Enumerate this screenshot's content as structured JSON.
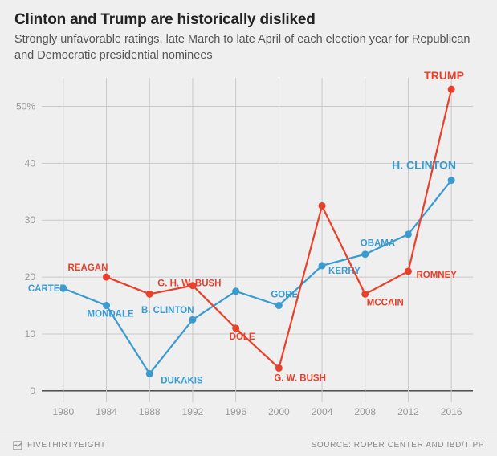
{
  "title": "Clinton and Trump are historically disliked",
  "subtitle": "Strongly unfavorable ratings, late March to late April of each election year for Republican and Democratic presidential nominees",
  "footer": {
    "brand": "FIVETHIRTYEIGHT",
    "source": "SOURCE: ROPER CENTER AND IBD/TIPP"
  },
  "chart": {
    "type": "line",
    "background": "#efefef",
    "grid_color": "#c9c9c9",
    "zero_line_color": "#3a3a3a",
    "axis_text_color": "#999999",
    "axis_fontsize": 12,
    "label_fontsize": 11.5,
    "end_label_fontsize": 14,
    "marker_radius": 4.5,
    "line_width": 2.2,
    "x": {
      "years": [
        1980,
        1984,
        1988,
        1992,
        1996,
        2000,
        2004,
        2008,
        2012,
        2016
      ],
      "min": 1978,
      "max": 2018
    },
    "y": {
      "ticks": [
        0,
        10,
        20,
        30,
        40,
        50
      ],
      "suffix_tick": 50,
      "suffix": "%",
      "min": -2,
      "max": 55
    },
    "series": {
      "dem": {
        "color": "#3a9bd1",
        "points": [
          {
            "year": 1980,
            "value": 18,
            "label": "CARTER",
            "dx": -44,
            "dy": 4
          },
          {
            "year": 1984,
            "value": 15,
            "label": "MONDALE",
            "dx": -24,
            "dy": 14
          },
          {
            "year": 1988,
            "value": 3,
            "label": "DUKAKIS",
            "dx": 14,
            "dy": 12
          },
          {
            "year": 1992,
            "value": 12.5,
            "label": "B. CLINTON",
            "dx": -64,
            "dy": -8
          },
          {
            "year": 1996,
            "value": 17.5,
            "label": "",
            "dx": 0,
            "dy": 0
          },
          {
            "year": 2000,
            "value": 15,
            "label": "GORE",
            "dx": -10,
            "dy": -10
          },
          {
            "year": 2004,
            "value": 22,
            "label": "KERRY",
            "dx": 8,
            "dy": 10
          },
          {
            "year": 2008,
            "value": 24,
            "label": "OBAMA",
            "dx": -6,
            "dy": -10
          },
          {
            "year": 2012,
            "value": 27.5,
            "label": "",
            "dx": 0,
            "dy": 0
          },
          {
            "year": 2016,
            "value": 37,
            "label": "",
            "dx": 0,
            "dy": 0
          }
        ],
        "end_label": {
          "text": "H. CLINTON",
          "dx": -74,
          "dy": -14
        }
      },
      "rep": {
        "color": "#e8402a",
        "points": [
          {
            "year": 1984,
            "value": 20,
            "label": "REAGAN",
            "dx": -48,
            "dy": -8
          },
          {
            "year": 1988,
            "value": 17,
            "label": "G. H. W. BUSH",
            "dx": 10,
            "dy": -10
          },
          {
            "year": 1992,
            "value": 18.5,
            "label": "",
            "dx": 0,
            "dy": 0
          },
          {
            "year": 1996,
            "value": 11,
            "label": "DOLE",
            "dx": -8,
            "dy": 14
          },
          {
            "year": 2000,
            "value": 4,
            "label": "G. W. BUSH",
            "dx": -6,
            "dy": 16
          },
          {
            "year": 2004,
            "value": 32.5,
            "label": "",
            "dx": 0,
            "dy": 0
          },
          {
            "year": 2008,
            "value": 17,
            "label": "MCCAIN",
            "dx": 2,
            "dy": 14
          },
          {
            "year": 2012,
            "value": 21,
            "label": "ROMNEY",
            "dx": 10,
            "dy": 8
          },
          {
            "year": 2016,
            "value": 53,
            "label": "",
            "dx": 0,
            "dy": 0
          }
        ],
        "end_label": {
          "text": "TRUMP",
          "dx": -34,
          "dy": -12
        }
      }
    }
  }
}
